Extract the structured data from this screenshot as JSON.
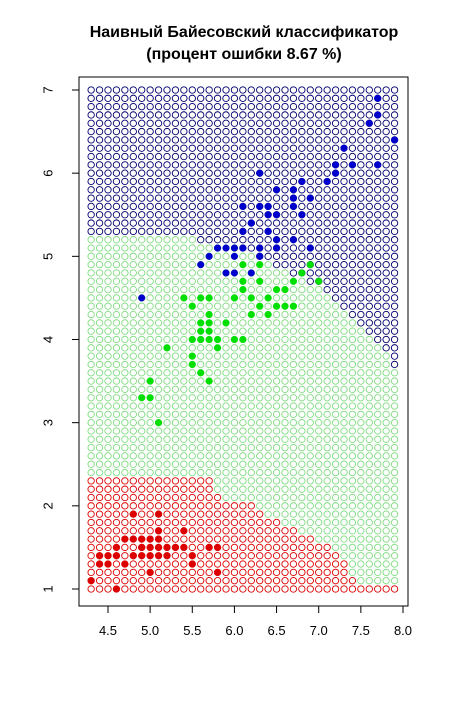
{
  "chart_data": {
    "type": "scatter",
    "title": "Наивный Байесовский классификатор",
    "subtitle": "(процент ошибки  8.67 %)",
    "xlabel": "",
    "ylabel": "",
    "xlim": [
      4.2,
      8.05
    ],
    "ylim": [
      0.8,
      7.05
    ],
    "x_ticks": [
      "4.5",
      "5.0",
      "5.5",
      "6.0",
      "6.5",
      "7.0",
      "7.5",
      "8.0"
    ],
    "y_ticks": [
      "1",
      "2",
      "3",
      "4",
      "5",
      "6",
      "7"
    ],
    "grid": false,
    "legend": "none",
    "classes": [
      {
        "color": "#dd0000"
      },
      {
        "color": "#00e000"
      },
      {
        "color": "#0000cc"
      }
    ],
    "region_colors": {
      "red": "#dd0000",
      "green": "#7fdc7f",
      "blue": "#00006e"
    },
    "decision_regions": {
      "grid_x_start": 4.3,
      "grid_x_end": 7.9,
      "grid_y_start": 1.0,
      "grid_y_end": 7.0,
      "step": 0.1,
      "red_top_by_x": [
        [
          4.3,
          2.3
        ],
        [
          5.7,
          2.3
        ],
        [
          5.8,
          2.1
        ],
        [
          6.2,
          2.0
        ],
        [
          6.5,
          1.8
        ],
        [
          6.8,
          1.65
        ],
        [
          7.2,
          1.45
        ],
        [
          7.5,
          1.0
        ]
      ],
      "blue_bottom_by_x": [
        [
          4.3,
          5.25
        ],
        [
          5.2,
          5.25
        ],
        [
          6.0,
          5.15
        ],
        [
          6.4,
          4.95
        ],
        [
          6.8,
          4.75
        ],
        [
          7.1,
          4.55
        ],
        [
          7.4,
          4.3
        ],
        [
          7.7,
          4.0
        ],
        [
          7.9,
          3.65
        ]
      ]
    },
    "series": [
      {
        "class": 0,
        "x": [
          4.3,
          4.4,
          4.4,
          4.5,
          4.5,
          4.6,
          4.6,
          4.6,
          4.7,
          4.7,
          4.8,
          4.8,
          4.8,
          4.9,
          4.9,
          4.9,
          5.0,
          5.0,
          5.0,
          5.0,
          5.1,
          5.1,
          5.1,
          5.1,
          5.2,
          5.2,
          5.3,
          5.4,
          5.4,
          5.5,
          5.5,
          5.7,
          5.8,
          5.8,
          4.9,
          5.1
        ],
        "y": [
          1.1,
          1.3,
          1.4,
          1.3,
          1.4,
          1.0,
          1.4,
          1.5,
          1.3,
          1.6,
          1.4,
          1.6,
          1.9,
          1.4,
          1.5,
          1.6,
          1.2,
          1.4,
          1.5,
          1.6,
          1.4,
          1.5,
          1.7,
          1.9,
          1.4,
          1.5,
          1.5,
          1.5,
          1.7,
          1.3,
          1.4,
          1.5,
          1.2,
          1.5,
          1.5,
          1.6
        ]
      },
      {
        "class": 1,
        "x": [
          4.9,
          5.0,
          5.0,
          5.1,
          5.2,
          5.4,
          5.5,
          5.5,
          5.5,
          5.5,
          5.6,
          5.6,
          5.6,
          5.6,
          5.7,
          5.7,
          5.7,
          5.7,
          5.7,
          5.8,
          5.8,
          5.9,
          5.9,
          6.0,
          6.0,
          6.0,
          6.0,
          6.1,
          6.1,
          6.1,
          6.1,
          6.2,
          6.2,
          6.3,
          6.3,
          6.3,
          6.4,
          6.4,
          6.5,
          6.5,
          6.6,
          6.6,
          6.7,
          6.7,
          6.8,
          6.9,
          7.0,
          5.6,
          5.7
        ],
        "y": [
          3.3,
          3.3,
          3.5,
          3.0,
          3.9,
          4.5,
          3.7,
          3.8,
          4.0,
          4.4,
          3.6,
          4.1,
          4.2,
          4.5,
          3.5,
          4.1,
          4.2,
          4.5,
          4.3,
          3.9,
          4.0,
          4.2,
          4.8,
          4.0,
          4.5,
          5.1,
          4.5,
          4.0,
          4.6,
          4.7,
          4.9,
          4.3,
          4.5,
          4.4,
          4.7,
          4.9,
          4.3,
          4.5,
          4.6,
          4.4,
          4.4,
          4.6,
          4.4,
          4.7,
          4.8,
          4.9,
          4.7,
          4.0,
          4.0
        ]
      },
      {
        "class": 2,
        "x": [
          4.9,
          5.6,
          5.7,
          5.8,
          5.8,
          5.9,
          6.0,
          6.0,
          6.1,
          6.1,
          6.2,
          6.2,
          6.3,
          6.3,
          6.3,
          6.3,
          6.4,
          6.4,
          6.4,
          6.4,
          6.5,
          6.5,
          6.5,
          6.5,
          6.7,
          6.7,
          6.7,
          6.7,
          6.8,
          6.8,
          6.9,
          6.9,
          7.1,
          7.2,
          7.2,
          7.3,
          7.4,
          7.6,
          7.7,
          7.7,
          7.7,
          7.9,
          6.0,
          6.2,
          6.1,
          6.4,
          5.9
        ],
        "y": [
          4.5,
          4.9,
          5.0,
          5.1,
          5.1,
          5.1,
          4.8,
          5.0,
          5.6,
          5.1,
          4.8,
          5.4,
          5.6,
          5.1,
          5.0,
          6.0,
          5.3,
          5.5,
          5.6,
          5.3,
          5.2,
          5.5,
          5.8,
          5.1,
          5.7,
          5.8,
          5.2,
          5.6,
          5.5,
          5.9,
          5.1,
          5.7,
          5.9,
          6.0,
          6.1,
          6.3,
          6.1,
          6.6,
          6.7,
          6.9,
          6.1,
          6.4,
          5.1,
          5.4,
          5.3,
          5.6,
          4.8
        ]
      }
    ]
  }
}
